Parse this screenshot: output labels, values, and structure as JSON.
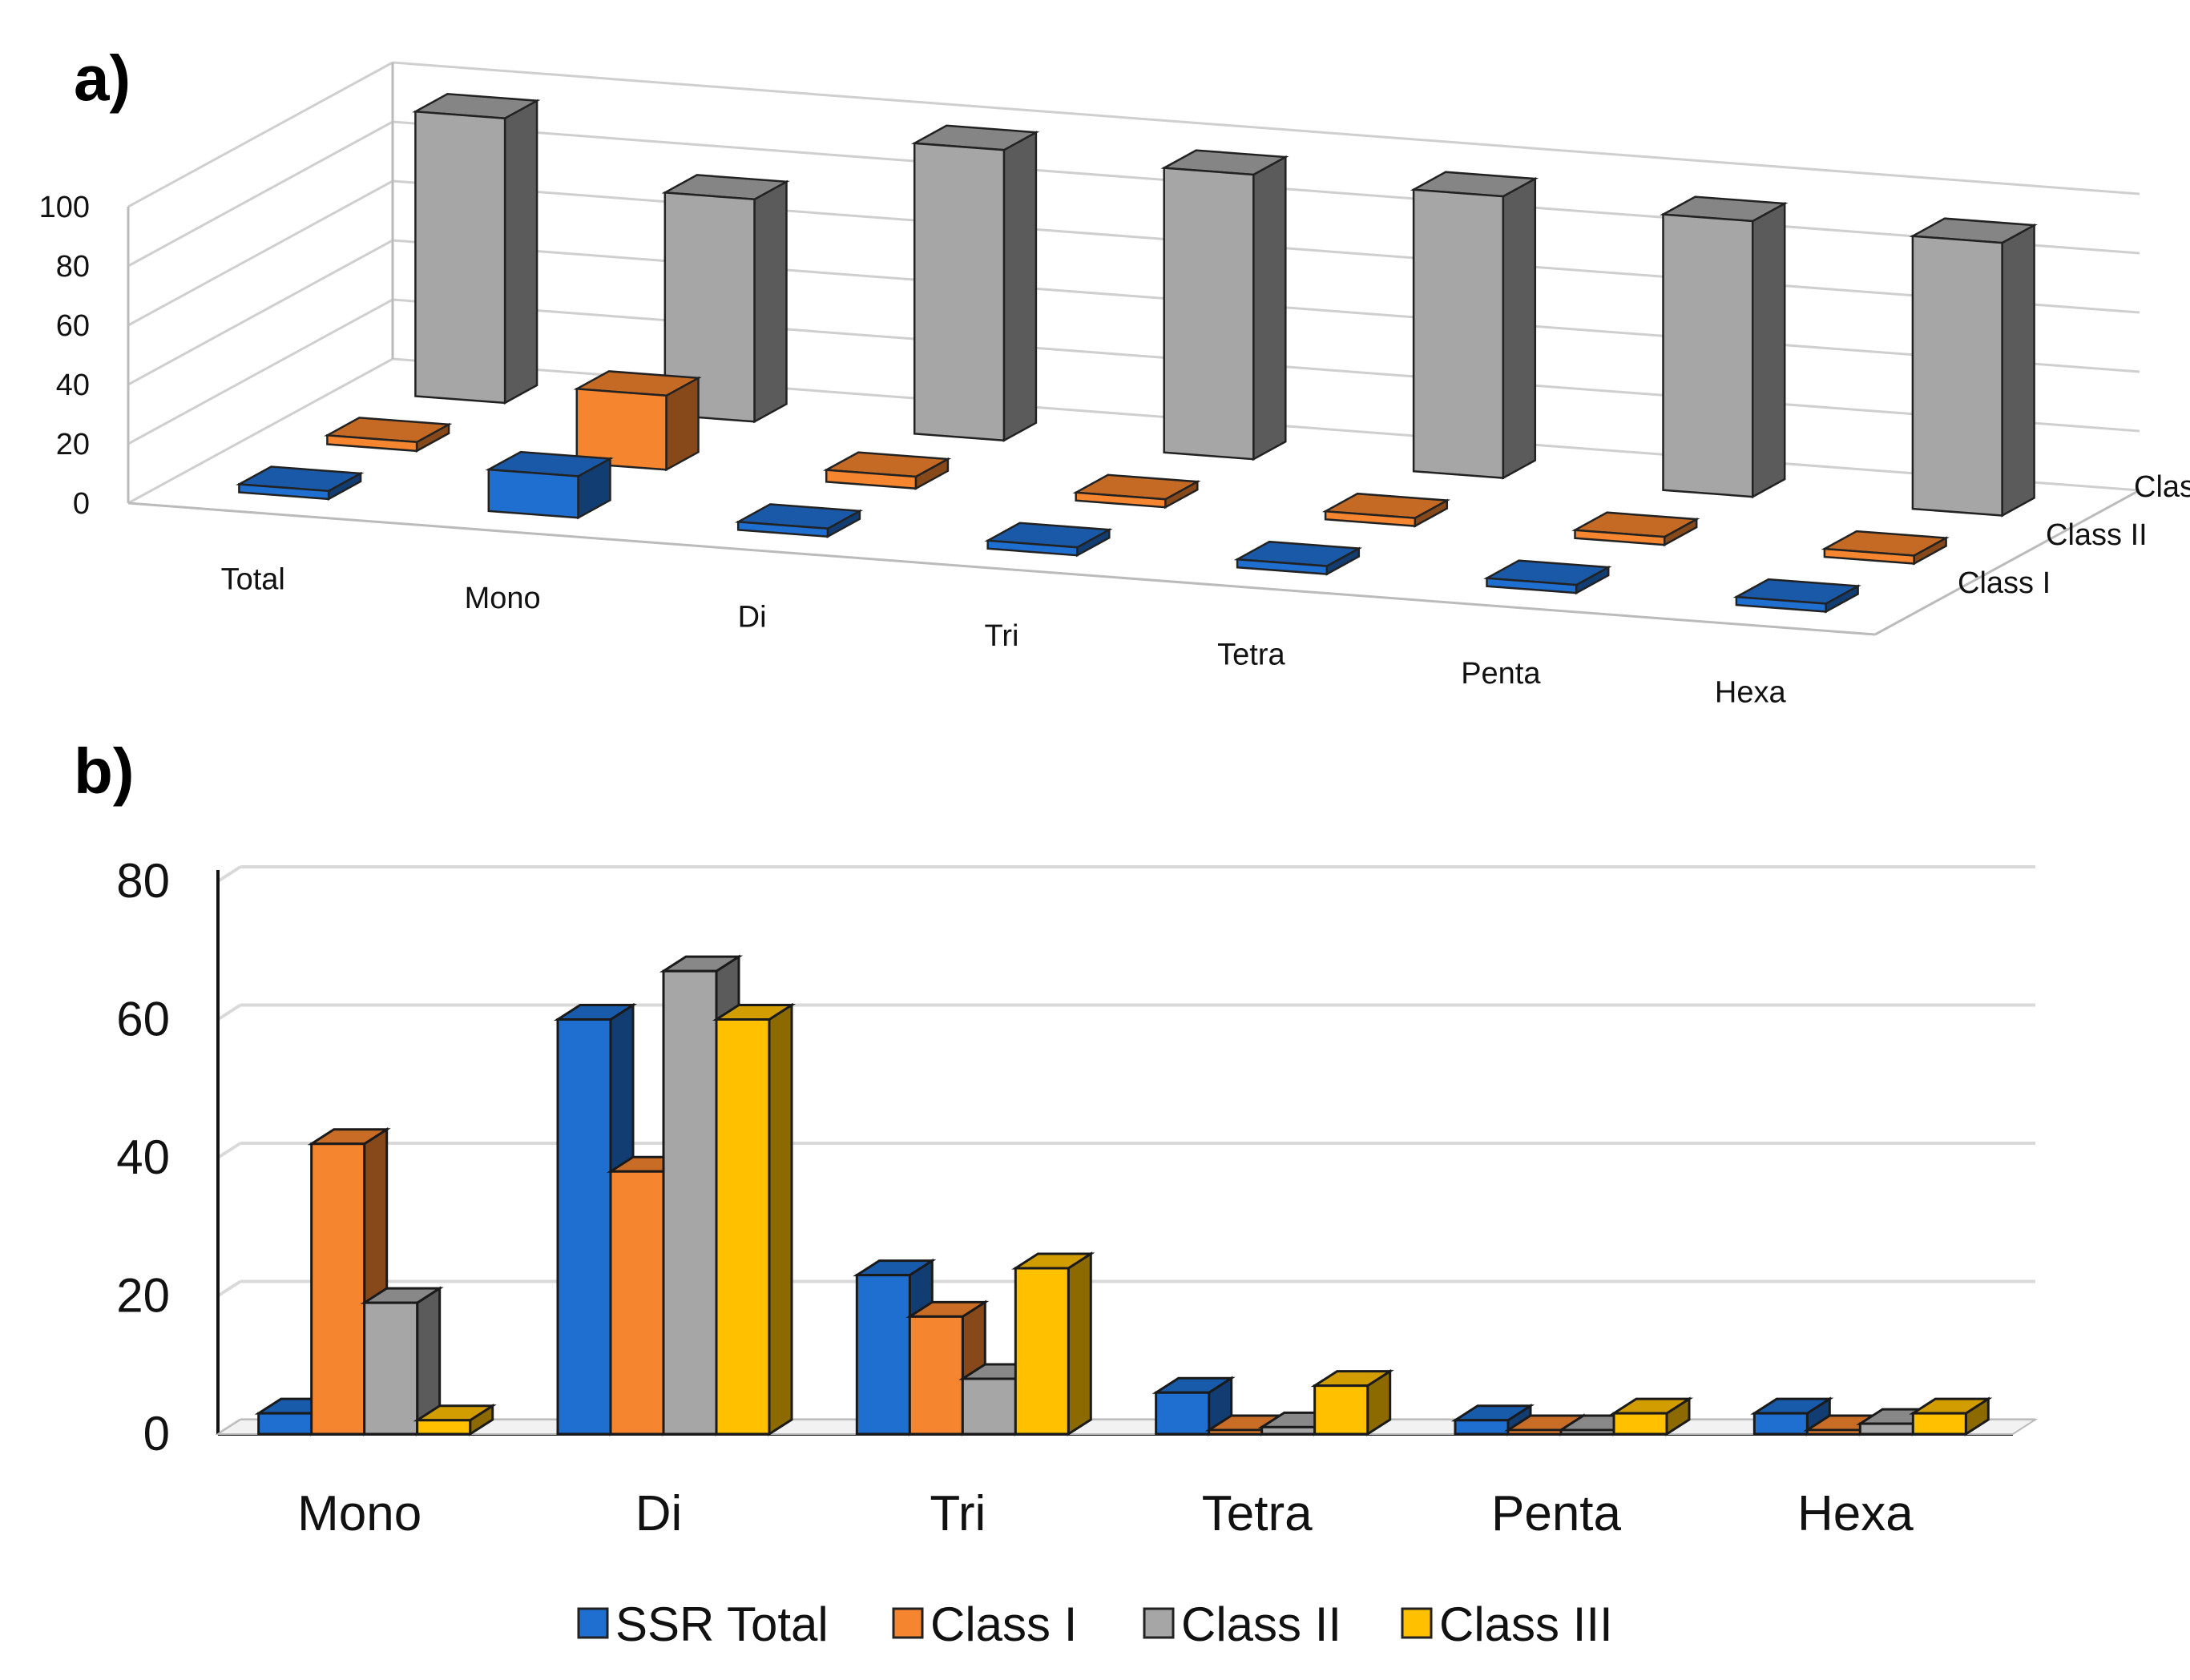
{
  "chart_data": [
    {
      "panel": "a)",
      "type": "bar",
      "projection": "3d",
      "categories": [
        "Total",
        "Mono",
        "Di",
        "Tri",
        "Tetra",
        "Penta",
        "Hexa"
      ],
      "depth_labels": [
        "Class I",
        "Class II",
        "Class III"
      ],
      "series": [
        {
          "name": "Class I",
          "color": "#1f6fd1",
          "values": [
            0.5,
            14,
            0.5,
            0.5,
            0.5,
            0.5,
            0.5
          ]
        },
        {
          "name": "Class II",
          "color": "#f5852e",
          "values": [
            3,
            25,
            4,
            2,
            1,
            1,
            2
          ]
        },
        {
          "name": "Class III",
          "color": "#a6a6a6",
          "values": [
            96,
            75,
            98,
            96,
            95,
            93,
            92
          ]
        }
      ],
      "ylim": [
        0,
        100
      ],
      "yticks": [
        0,
        20,
        40,
        60,
        80,
        100
      ]
    },
    {
      "panel": "b)",
      "type": "bar",
      "projection": "3d",
      "categories": [
        "Mono",
        "Di",
        "Tri",
        "Tetra",
        "Penta",
        "Hexa"
      ],
      "series": [
        {
          "name": "SSR Total",
          "color": "#1f6fd1",
          "values": [
            3,
            60,
            23,
            6,
            2,
            3
          ]
        },
        {
          "name": "Class I",
          "color": "#f5852e",
          "values": [
            42,
            38,
            17,
            0.3,
            0.2,
            0.2
          ]
        },
        {
          "name": "Class II",
          "color": "#a6a6a6",
          "values": [
            19,
            67,
            8,
            1,
            0.5,
            1.5
          ]
        },
        {
          "name": "Class III",
          "color": "#ffc000",
          "values": [
            2,
            60,
            24,
            7,
            3,
            3
          ]
        }
      ],
      "ylim": [
        0,
        80
      ],
      "yticks": [
        0,
        20,
        40,
        60,
        80
      ],
      "legend": [
        "SSR Total",
        "Class I",
        "Class II",
        "Class III"
      ],
      "legend_position": "bottom"
    }
  ]
}
